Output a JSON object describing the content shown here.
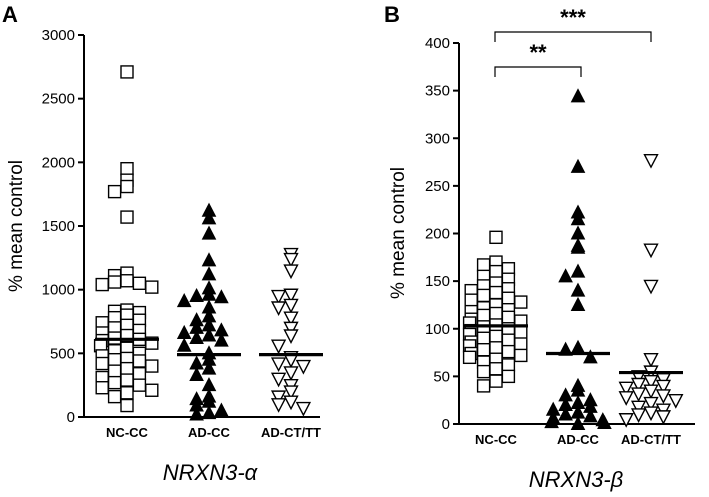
{
  "chart_data": [
    {
      "type": "scatter",
      "panel_label": "A",
      "xlabel": "NRXN3-α",
      "ylabel": "% mean control",
      "ylim": [
        0,
        3000
      ],
      "yticks": [
        0,
        500,
        1000,
        1500,
        2000,
        2500,
        3000
      ],
      "categories": [
        "NC-CC",
        "AD-CC",
        "AD-CT/TT"
      ],
      "series": [
        {
          "category": "NC-CC",
          "marker": "open-square",
          "mean": 610,
          "values": [
            2710,
            1950,
            1860,
            1810,
            1770,
            1570,
            1130,
            1110,
            1070,
            1060,
            1050,
            1040,
            1020,
            840,
            830,
            820,
            800,
            780,
            760,
            740,
            720,
            700,
            680,
            660,
            640,
            620,
            610,
            600,
            580,
            560,
            540,
            520,
            500,
            480,
            460,
            450,
            440,
            420,
            400,
            380,
            360,
            340,
            310,
            290,
            270,
            250,
            230,
            210,
            190,
            160,
            90
          ]
        },
        {
          "category": "AD-CC",
          "marker": "filled-triangle-up",
          "mean": 490,
          "values": [
            1620,
            1560,
            1440,
            1230,
            1120,
            1010,
            960,
            950,
            940,
            910,
            860,
            790,
            760,
            720,
            700,
            680,
            660,
            640,
            620,
            600,
            560,
            500,
            450,
            420,
            380,
            330,
            250,
            160,
            140,
            120,
            90,
            50,
            30,
            20
          ]
        },
        {
          "category": "AD-CT/TT",
          "marker": "open-triangle-down",
          "mean": 490,
          "values": [
            1280,
            1240,
            1150,
            960,
            950,
            880,
            860,
            780,
            700,
            640,
            560,
            470,
            450,
            420,
            400,
            350,
            300,
            250,
            200,
            160,
            120,
            100,
            70
          ]
        }
      ]
    },
    {
      "type": "scatter",
      "panel_label": "B",
      "xlabel": "NRXN3-β",
      "ylabel": "% mean control",
      "ylim": [
        0,
        400
      ],
      "yticks": [
        0,
        50,
        100,
        150,
        200,
        250,
        300,
        350,
        400
      ],
      "categories": [
        "NC-CC",
        "AD-CC",
        "AD-CT/TT"
      ],
      "series": [
        {
          "category": "NC-CC",
          "marker": "open-square",
          "mean": 103,
          "values": [
            196,
            170,
            167,
            163,
            160,
            155,
            152,
            148,
            145,
            142,
            140,
            138,
            135,
            132,
            130,
            128,
            125,
            122,
            120,
            118,
            116,
            114,
            112,
            110,
            108,
            106,
            104,
            102,
            100,
            98,
            96,
            94,
            92,
            90,
            88,
            86,
            84,
            82,
            80,
            78,
            76,
            74,
            72,
            70,
            68,
            65,
            62,
            58,
            55,
            50,
            45,
            40
          ]
        },
        {
          "category": "AD-CC",
          "marker": "filled-triangle-up",
          "mean": 74,
          "values": [
            344,
            270,
            222,
            215,
            200,
            187,
            185,
            160,
            155,
            140,
            125,
            80,
            78,
            70,
            40,
            35,
            30,
            25,
            22,
            20,
            18,
            15,
            12,
            10,
            8,
            6,
            4,
            2,
            1,
            0
          ]
        },
        {
          "category": "AD-CT/TT",
          "marker": "open-triangle-down",
          "mean": 54,
          "values": [
            277,
            183,
            145,
            68,
            55,
            50,
            47,
            45,
            42,
            40,
            38,
            35,
            32,
            30,
            28,
            25,
            22,
            18,
            15,
            12,
            10,
            8,
            5
          ]
        }
      ],
      "significance": [
        {
          "from": "NC-CC",
          "to": "AD-CC",
          "label": "**"
        },
        {
          "from": "NC-CC",
          "to": "AD-CT/TT",
          "label": "***"
        }
      ]
    }
  ]
}
